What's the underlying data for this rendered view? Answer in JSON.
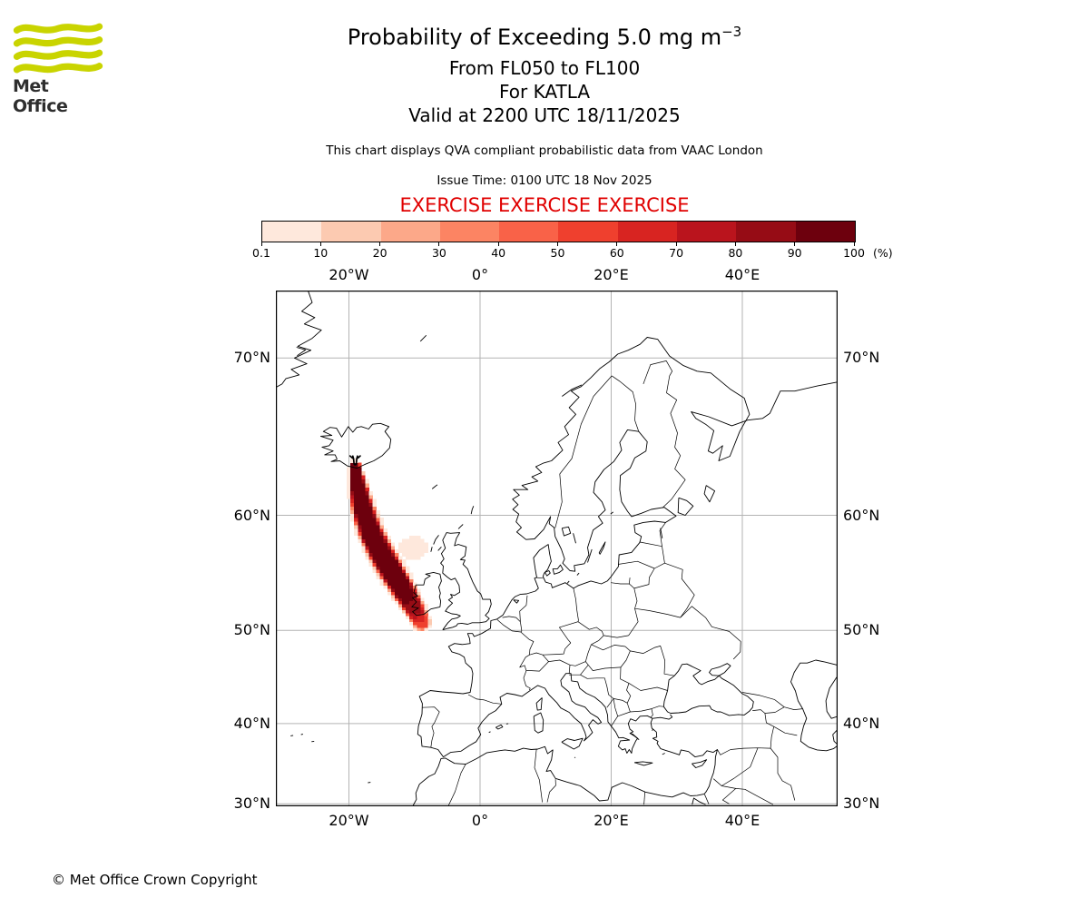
{
  "header": {
    "logo_text": "Met Office",
    "logo_green": "#c9d400",
    "title": "Probability of Exceeding 5.0 mg m",
    "title_exponent": "−3",
    "subtitle_flight_levels": "From FL050 to FL100",
    "subtitle_volcano": "For KATLA",
    "subtitle_valid": "Valid at 2200 UTC 18/11/2025",
    "note": "This chart displays QVA compliant probabilistic data from VAAC London",
    "issue_time": "Issue Time: 0100 UTC 18 Nov 2025",
    "exercise": "EXERCISE EXERCISE EXERCISE",
    "exercise_color": "#e00000"
  },
  "colorbar": {
    "labels": [
      "0.1",
      "10",
      "20",
      "30",
      "40",
      "50",
      "60",
      "70",
      "80",
      "90",
      "100"
    ],
    "bounds": [
      0.1,
      10,
      20,
      30,
      40,
      50,
      60,
      70,
      80,
      90,
      100
    ],
    "unit": "(%)",
    "colors": [
      "#fee8dc",
      "#fccab1",
      "#fca889",
      "#fc8463",
      "#f96248",
      "#ef402e",
      "#d82421",
      "#ba141d",
      "#960c15",
      "#6d000d"
    ]
  },
  "map": {
    "grid_color": "#b3b3b3",
    "lon_ticks": [
      -20,
      0,
      20,
      40
    ],
    "lon_tick_labels": [
      "20°W",
      "0°",
      "20°E",
      "40°E"
    ],
    "lat_ticks": [
      70,
      60,
      50,
      40,
      30
    ],
    "lat_tick_labels": [
      "70°N",
      "60°N",
      "50°N",
      "40°N",
      "30°N"
    ],
    "extent": {
      "lon_min": -31.1,
      "lon_max": 54.5,
      "lat_min": 29.9,
      "lat_max": 73.2
    },
    "volcano": {
      "name": "KATLA",
      "lon": -19.05,
      "lat": 63.63
    },
    "plume": {
      "description": "Ash-cloud exceedance-probability plume from Katla stretching south-southeast over the North Atlantic to just southwest of Ireland",
      "centerline": [
        [
          -19.05,
          63.5
        ],
        [
          -18.55,
          62.0
        ],
        [
          -17.75,
          60.3
        ],
        [
          -16.6,
          58.6
        ],
        [
          -15.0,
          56.9
        ],
        [
          -13.2,
          55.2
        ],
        [
          -11.5,
          53.6
        ],
        [
          -10.1,
          52.2
        ],
        [
          -8.95,
          50.85
        ]
      ],
      "half_width_deg": [
        0.45,
        0.8,
        1.05,
        1.2,
        1.3,
        1.35,
        1.3,
        1.15,
        1.0
      ],
      "peak_percent": [
        100,
        100,
        100,
        100,
        100,
        100,
        97,
        85,
        60
      ],
      "secondary_lobe": {
        "lon": -10.2,
        "lat": 57.4,
        "rx": 1.3,
        "ry": 1.0,
        "peak_percent": 8
      },
      "cell_deg": {
        "lon": 0.5625,
        "lat": 0.28125
      }
    }
  },
  "footer": {
    "copyright": "© Met Office Crown Copyright"
  }
}
